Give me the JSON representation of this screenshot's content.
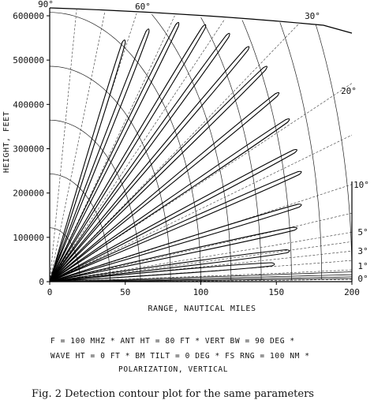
{
  "chart_data": {
    "type": "line",
    "title": "",
    "xlabel": "RANGE, NAUTICAL MILES",
    "ylabel": "HEIGHT, FEET",
    "xlim": [
      0,
      200
    ],
    "ylim": [
      0,
      600000
    ],
    "x_ticks": [
      "0",
      "50",
      "100",
      "150",
      "200"
    ],
    "y_ticks": [
      "0",
      "100000",
      "200000",
      "300000",
      "400000",
      "500000",
      "600000"
    ],
    "elevation_angle_labels": [
      "90°",
      "60°",
      "30°",
      "20°",
      "10°",
      "5°",
      "3°",
      "1°",
      "0°"
    ],
    "lobes": [
      {
        "elevation_deg": 60,
        "tip_range_nm": 50,
        "tip_height_ft": 550000
      },
      {
        "elevation_deg": 50,
        "tip_range_nm": 66,
        "tip_height_ft": 575000
      },
      {
        "elevation_deg": 45,
        "tip_range_nm": 86,
        "tip_height_ft": 590000
      },
      {
        "elevation_deg": 40,
        "tip_range_nm": 104,
        "tip_height_ft": 585000
      },
      {
        "elevation_deg": 35,
        "tip_range_nm": 120,
        "tip_height_ft": 565000
      },
      {
        "elevation_deg": 30,
        "tip_range_nm": 133,
        "tip_height_ft": 535000
      },
      {
        "elevation_deg": 26,
        "tip_range_nm": 145,
        "tip_height_ft": 490000
      },
      {
        "elevation_deg": 22,
        "tip_range_nm": 153,
        "tip_height_ft": 430000
      },
      {
        "elevation_deg": 18,
        "tip_range_nm": 160,
        "tip_height_ft": 370000
      },
      {
        "elevation_deg": 15,
        "tip_range_nm": 165,
        "tip_height_ft": 300000
      },
      {
        "elevation_deg": 12,
        "tip_range_nm": 168,
        "tip_height_ft": 250000
      },
      {
        "elevation_deg": 9,
        "tip_range_nm": 168,
        "tip_height_ft": 175000
      },
      {
        "elevation_deg": 6,
        "tip_range_nm": 165,
        "tip_height_ft": 122000
      },
      {
        "elevation_deg": 4,
        "tip_range_nm": 160,
        "tip_height_ft": 70000
      },
      {
        "elevation_deg": 2,
        "tip_range_nm": 150,
        "tip_height_ft": 40000
      }
    ],
    "range_rings_nm": [
      20,
      40,
      60,
      80,
      100,
      120,
      140,
      160,
      180,
      200
    ],
    "angle_lines_deg": [
      0,
      1,
      2,
      3,
      4,
      5,
      7,
      10,
      15,
      20,
      30,
      40,
      50,
      60,
      70,
      80,
      90
    ],
    "grid": false,
    "legend": "none"
  },
  "params": {
    "line1": "F  =  100 MHZ * ANT HT  =  80 FT * VERT BW = 90 DEG *",
    "line2": "WAVE HT = 0 FT * BM TILT =  0 DEG * FS RNG = 100 NM *",
    "line3": "POLARIZATION, VERTICAL"
  },
  "caption": "Fig. 2    Detection contour plot for the same parameters"
}
